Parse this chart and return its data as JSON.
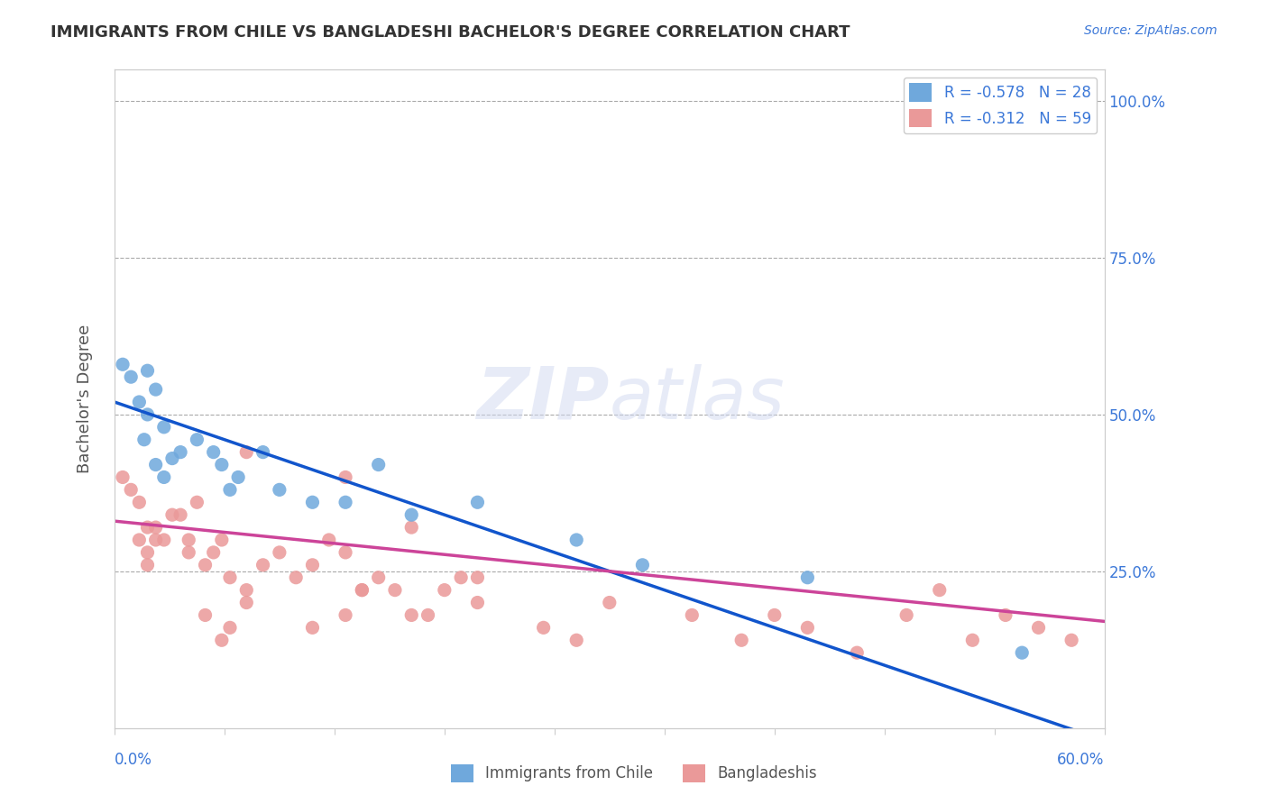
{
  "title": "IMMIGRANTS FROM CHILE VS BANGLADESHI BACHELOR'S DEGREE CORRELATION CHART",
  "source_text": "Source: ZipAtlas.com",
  "ylabel_label": "Bachelor's Degree",
  "legend_label1": "Immigrants from Chile",
  "legend_label2": "Bangladeshis",
  "blue_color": "#6fa8dc",
  "pink_color": "#ea9999",
  "line_blue": "#1155cc",
  "line_pink": "#cc4499",
  "xmin": 0.0,
  "xmax": 0.6,
  "ymin": 0.0,
  "ymax": 1.05,
  "blue_points_x": [
    0.01,
    0.005,
    0.02,
    0.015,
    0.025,
    0.02,
    0.018,
    0.025,
    0.03,
    0.04,
    0.03,
    0.035,
    0.05,
    0.06,
    0.065,
    0.07,
    0.075,
    0.09,
    0.1,
    0.12,
    0.14,
    0.16,
    0.18,
    0.22,
    0.28,
    0.32,
    0.42,
    0.55
  ],
  "blue_points_y": [
    0.56,
    0.58,
    0.57,
    0.52,
    0.54,
    0.5,
    0.46,
    0.42,
    0.48,
    0.44,
    0.4,
    0.43,
    0.46,
    0.44,
    0.42,
    0.38,
    0.4,
    0.44,
    0.38,
    0.36,
    0.36,
    0.42,
    0.34,
    0.36,
    0.3,
    0.26,
    0.24,
    0.12
  ],
  "pink_points_x": [
    0.005,
    0.01,
    0.015,
    0.02,
    0.015,
    0.025,
    0.02,
    0.03,
    0.025,
    0.02,
    0.035,
    0.04,
    0.045,
    0.055,
    0.045,
    0.05,
    0.06,
    0.065,
    0.07,
    0.08,
    0.09,
    0.1,
    0.11,
    0.08,
    0.12,
    0.13,
    0.14,
    0.15,
    0.14,
    0.16,
    0.17,
    0.18,
    0.19,
    0.2,
    0.21,
    0.22,
    0.14,
    0.12,
    0.08,
    0.07,
    0.065,
    0.055,
    0.15,
    0.18,
    0.22,
    0.26,
    0.28,
    0.3,
    0.35,
    0.38,
    0.4,
    0.42,
    0.45,
    0.48,
    0.5,
    0.52,
    0.54,
    0.56,
    0.58
  ],
  "pink_points_y": [
    0.4,
    0.38,
    0.36,
    0.32,
    0.3,
    0.3,
    0.28,
    0.3,
    0.32,
    0.26,
    0.34,
    0.34,
    0.28,
    0.26,
    0.3,
    0.36,
    0.28,
    0.3,
    0.24,
    0.22,
    0.26,
    0.28,
    0.24,
    0.44,
    0.26,
    0.3,
    0.28,
    0.22,
    0.4,
    0.24,
    0.22,
    0.32,
    0.18,
    0.22,
    0.24,
    0.2,
    0.18,
    0.16,
    0.2,
    0.16,
    0.14,
    0.18,
    0.22,
    0.18,
    0.24,
    0.16,
    0.14,
    0.2,
    0.18,
    0.14,
    0.18,
    0.16,
    0.12,
    0.18,
    0.22,
    0.14,
    0.18,
    0.16,
    0.14
  ],
  "blue_R": -0.578,
  "blue_N": 28,
  "pink_R": -0.312,
  "pink_N": 59,
  "blue_line_x0": 0.0,
  "blue_line_x1": 0.6,
  "blue_line_y0": 0.52,
  "blue_line_y1": -0.02,
  "pink_line_x0": 0.0,
  "pink_line_x1": 0.6,
  "pink_line_y0": 0.33,
  "pink_line_y1": 0.17
}
